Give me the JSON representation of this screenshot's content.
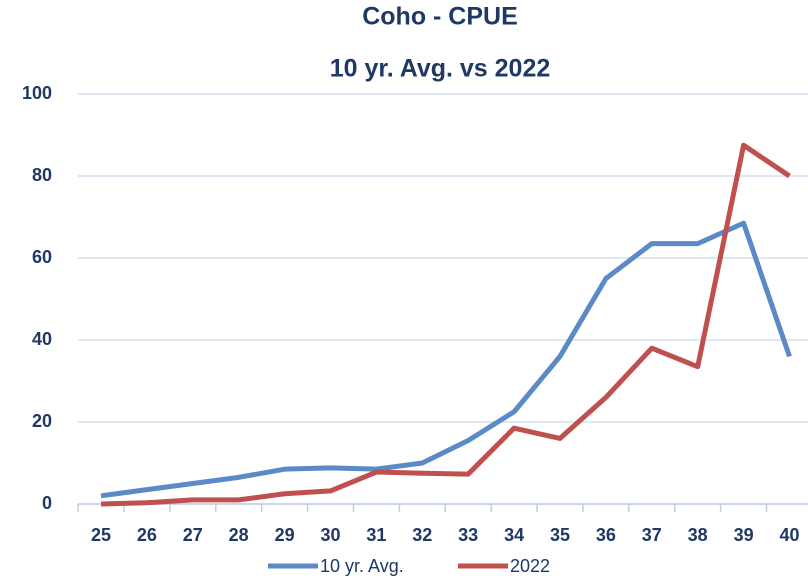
{
  "chart_data": {
    "type": "line",
    "title": "Coho - CPUE",
    "subtitle": "10 yr. Avg. vs 2022",
    "categories": [
      "25",
      "26",
      "27",
      "28",
      "29",
      "30",
      "31",
      "32",
      "33",
      "34",
      "35",
      "36",
      "37",
      "38",
      "39",
      "40"
    ],
    "series": [
      {
        "name": "10 yr. Avg.",
        "color": "#5b8ac6",
        "values": [
          2,
          3.5,
          5,
          6.5,
          8.5,
          8.8,
          8.5,
          10,
          15.5,
          22.5,
          36,
          55,
          63.5,
          63.5,
          68.5,
          36
        ]
      },
      {
        "name": "2022",
        "color": "#c0504d",
        "values": [
          0,
          0.3,
          1,
          1,
          2.5,
          3.2,
          7.8,
          7.5,
          7.3,
          18.5,
          16,
          26,
          38,
          33.5,
          87.5,
          80
        ]
      }
    ],
    "ylim": [
      0,
      100
    ],
    "yticks": [
      0,
      20,
      40,
      60,
      80,
      100
    ],
    "grid": true,
    "legend": "bottom"
  }
}
